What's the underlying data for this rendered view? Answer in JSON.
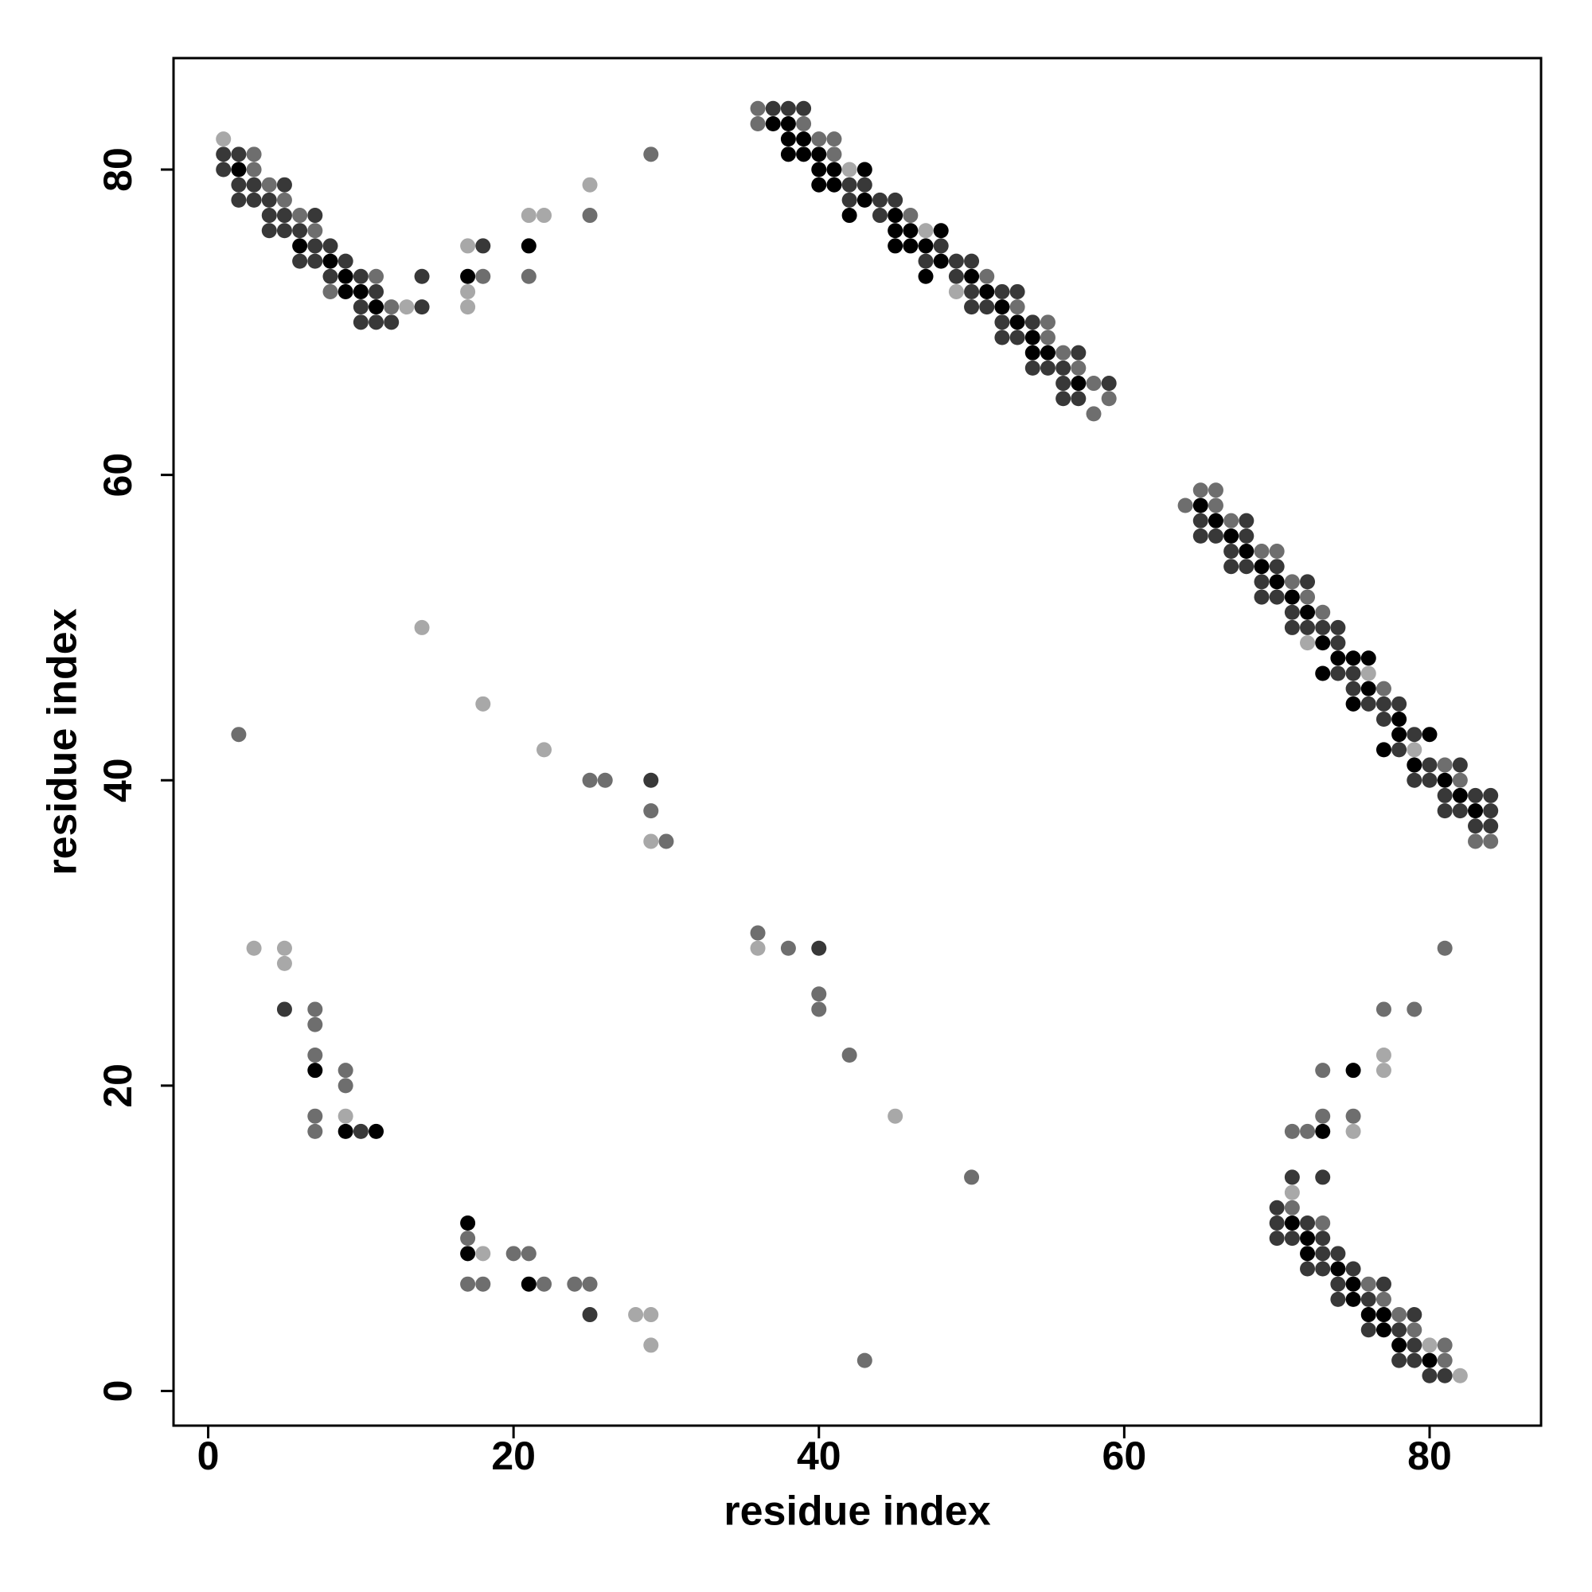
{
  "chart_data": {
    "type": "scatter",
    "xlabel": "residue index",
    "ylabel": "residue index",
    "xlim": [
      -2.27,
      87.3
    ],
    "ylim": [
      -2.27,
      87.3
    ],
    "xticks": [
      0,
      20,
      40,
      60,
      80
    ],
    "yticks": [
      0,
      20,
      40,
      60,
      80
    ],
    "series": [
      {
        "color": "#000000",
        "x": [
          2,
          6,
          8,
          9,
          9,
          10,
          11,
          17,
          21,
          37,
          38,
          38,
          38,
          39,
          39,
          40,
          40,
          40,
          41,
          41,
          42,
          43,
          43,
          45,
          45,
          45,
          46,
          46,
          47,
          47,
          48,
          48,
          50,
          51,
          52,
          53,
          54,
          54,
          55,
          57,
          65,
          66,
          67,
          68,
          69,
          70,
          71,
          72,
          73,
          73,
          74,
          75,
          75,
          76,
          76,
          77,
          78,
          78,
          79,
          80,
          81,
          82,
          83,
          7,
          9,
          11,
          75,
          73,
          17,
          17,
          21,
          71,
          72,
          72,
          74,
          75,
          75,
          76,
          77,
          77,
          78,
          80
        ],
        "y": [
          80,
          75,
          74,
          73,
          72,
          72,
          71,
          73,
          75,
          83,
          83,
          82,
          81,
          82,
          81,
          81,
          80,
          79,
          80,
          79,
          77,
          80,
          78,
          77,
          76,
          75,
          76,
          75,
          75,
          73,
          76,
          74,
          73,
          72,
          71,
          70,
          69,
          68,
          68,
          66,
          58,
          57,
          56,
          55,
          54,
          53,
          52,
          51,
          49,
          47,
          48,
          48,
          45,
          48,
          46,
          42,
          44,
          43,
          41,
          43,
          40,
          39,
          38,
          21,
          17,
          17,
          21,
          17,
          11,
          9,
          7,
          11,
          10,
          9,
          8,
          7,
          6,
          5,
          5,
          4,
          3,
          2
        ]
      },
      {
        "color": "#383838",
        "x": [
          1,
          1,
          2,
          2,
          2,
          3,
          3,
          4,
          4,
          4,
          5,
          5,
          5,
          6,
          6,
          7,
          7,
          7,
          8,
          8,
          9,
          10,
          10,
          10,
          11,
          11,
          12,
          14,
          14,
          18,
          37,
          38,
          39,
          42,
          42,
          43,
          44,
          44,
          45,
          47,
          48,
          49,
          49,
          50,
          50,
          50,
          51,
          52,
          52,
          52,
          53,
          53,
          54,
          54,
          55,
          56,
          56,
          56,
          57,
          57,
          59,
          65,
          65,
          66,
          67,
          67,
          68,
          68,
          68,
          69,
          69,
          70,
          70,
          71,
          71,
          72,
          72,
          73,
          74,
          74,
          74,
          75,
          75,
          76,
          77,
          77,
          78,
          78,
          79,
          79,
          80,
          80,
          81,
          81,
          82,
          82,
          83,
          83,
          84,
          84,
          84,
          29,
          5,
          10,
          40,
          25,
          71,
          73,
          70,
          70,
          72,
          70,
          71,
          73,
          73,
          74,
          72,
          73,
          75,
          74,
          77,
          74,
          76,
          79,
          76,
          78,
          79,
          78,
          79,
          80,
          81
        ],
        "y": [
          81,
          80,
          81,
          79,
          78,
          79,
          78,
          78,
          77,
          76,
          79,
          77,
          76,
          76,
          74,
          77,
          75,
          74,
          75,
          73,
          74,
          73,
          71,
          70,
          72,
          70,
          70,
          73,
          71,
          75,
          84,
          84,
          84,
          79,
          78,
          79,
          78,
          77,
          78,
          74,
          75,
          74,
          73,
          74,
          72,
          71,
          71,
          72,
          70,
          69,
          72,
          69,
          70,
          67,
          67,
          67,
          66,
          65,
          68,
          65,
          66,
          57,
          56,
          56,
          55,
          54,
          57,
          56,
          54,
          53,
          52,
          54,
          52,
          51,
          50,
          53,
          50,
          50,
          50,
          49,
          47,
          47,
          46,
          45,
          45,
          44,
          45,
          42,
          43,
          40,
          41,
          40,
          39,
          38,
          41,
          38,
          39,
          37,
          39,
          38,
          37,
          40,
          25,
          17,
          29,
          5,
          14,
          14,
          12,
          11,
          11,
          10,
          10,
          10,
          9,
          9,
          8,
          8,
          8,
          7,
          7,
          6,
          6,
          5,
          4,
          4,
          3,
          2,
          2,
          1,
          1
        ]
      },
      {
        "color": "#6e6e6e",
        "x": [
          3,
          3,
          4,
          5,
          6,
          7,
          8,
          11,
          12,
          18,
          21,
          25,
          29,
          36,
          36,
          39,
          40,
          41,
          41,
          46,
          51,
          53,
          55,
          55,
          56,
          57,
          58,
          58,
          59,
          64,
          65,
          66,
          66,
          67,
          69,
          70,
          71,
          72,
          73,
          77,
          81,
          82,
          83,
          84,
          2,
          25,
          26,
          29,
          30,
          7,
          7,
          7,
          9,
          9,
          7,
          7,
          36,
          38,
          40,
          40,
          42,
          50,
          81,
          77,
          79,
          73,
          73,
          75,
          71,
          72,
          17,
          20,
          21,
          17,
          18,
          22,
          24,
          25,
          43,
          71,
          73,
          76,
          77,
          78,
          79,
          81,
          81
        ],
        "y": [
          81,
          80,
          79,
          78,
          77,
          76,
          72,
          73,
          71,
          73,
          73,
          77,
          81,
          84,
          83,
          83,
          82,
          82,
          81,
          77,
          73,
          71,
          70,
          69,
          68,
          67,
          66,
          64,
          65,
          58,
          59,
          59,
          58,
          57,
          55,
          55,
          53,
          52,
          51,
          46,
          41,
          40,
          36,
          36,
          43,
          40,
          40,
          38,
          36,
          25,
          24,
          22,
          21,
          20,
          18,
          17,
          30,
          29,
          26,
          25,
          22,
          14,
          29,
          25,
          25,
          21,
          18,
          18,
          17,
          17,
          10,
          9,
          9,
          7,
          7,
          7,
          7,
          7,
          2,
          12,
          11,
          7,
          6,
          5,
          4,
          3,
          2
        ]
      },
      {
        "color": "#a8a8a8",
        "x": [
          1,
          13,
          17,
          17,
          17,
          21,
          22,
          25,
          42,
          47,
          49,
          72,
          76,
          79,
          14,
          18,
          22,
          29,
          3,
          5,
          5,
          9,
          36,
          45,
          77,
          77,
          75,
          18,
          28,
          29,
          29,
          71,
          80,
          82
        ],
        "y": [
          82,
          71,
          75,
          72,
          71,
          77,
          77,
          79,
          80,
          76,
          72,
          49,
          47,
          42,
          50,
          45,
          42,
          36,
          29,
          29,
          28,
          18,
          29,
          18,
          22,
          21,
          17,
          9,
          5,
          5,
          3,
          13,
          3,
          1
        ]
      }
    ]
  }
}
